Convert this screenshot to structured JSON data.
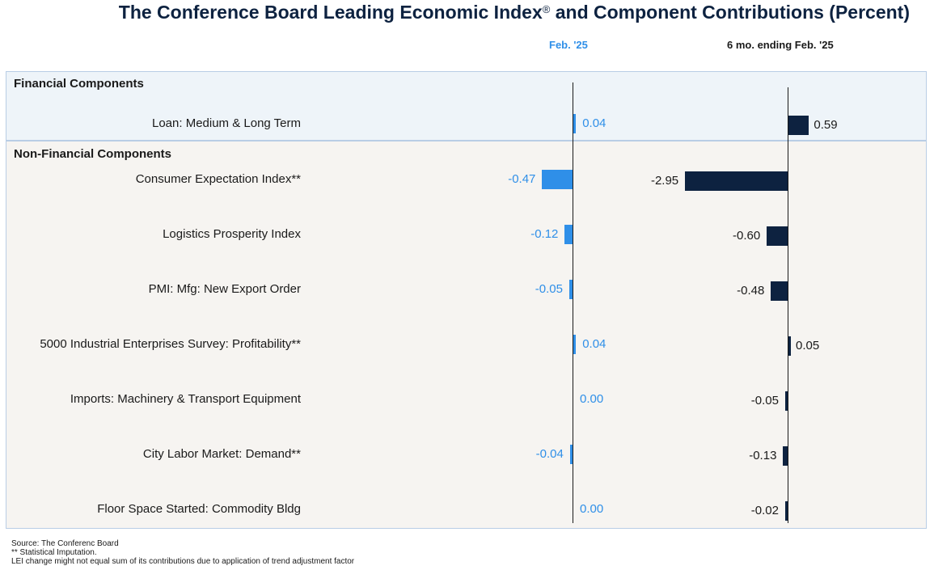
{
  "title": "The Conference Board Leading Economic Index",
  "title_mark": "®",
  "title_rest": " and Component Contributions (Percent)",
  "col_headers": {
    "feb": "Feb. '25",
    "six_mo": "6 mo. ending Feb. '25"
  },
  "sections": {
    "financial": "Financial Components",
    "non_financial": "Non-Financial Components"
  },
  "colors": {
    "feb_bar": "#2f8fe8",
    "six_mo_bar": "#0d2240",
    "financial_bg": "#eef4f9",
    "non_financial_bg": "#f6f4f1"
  },
  "footer": {
    "source": "Source: The Conferenc Board",
    "note1": "**  Statistical Imputation.",
    "note2": "LEI change might not equal sum of its contributions due to application of trend adjustment factor"
  },
  "chart_data": {
    "type": "bar",
    "orientation": "horizontal",
    "categories": [
      "Loan: Medium & Long Term",
      "Consumer Expectation Index**",
      "Logistics Prosperity Index",
      "PMI: Mfg: New Export Order",
      "5000 Industrial Enterprises Survey: Profitability**",
      "Imports: Machinery & Transport Equipment",
      "City Labor Market: Demand**",
      "Floor Space Started: Commodity Bldg"
    ],
    "category_groups": [
      "Financial Components",
      "Non-Financial Components",
      "Non-Financial Components",
      "Non-Financial Components",
      "Non-Financial Components",
      "Non-Financial Components",
      "Non-Financial Components",
      "Non-Financial Components"
    ],
    "series": [
      {
        "name": "Feb. '25",
        "values": [
          0.04,
          -0.47,
          -0.12,
          -0.05,
          0.04,
          0.0,
          -0.04,
          0.0
        ],
        "labels": [
          "0.04",
          "-0.47",
          "-0.12",
          "-0.05",
          "0.04",
          "0.00",
          "-0.04",
          "0.00"
        ]
      },
      {
        "name": "6 mo. ending Feb. '25",
        "values": [
          0.59,
          -2.95,
          -0.6,
          -0.48,
          0.05,
          -0.05,
          -0.13,
          -0.02
        ],
        "labels": [
          "0.59",
          "-2.95",
          "-0.60",
          "-0.48",
          "0.05",
          "-0.05",
          "-0.13",
          "-0.02"
        ]
      }
    ],
    "grid": false,
    "legend": "none"
  }
}
